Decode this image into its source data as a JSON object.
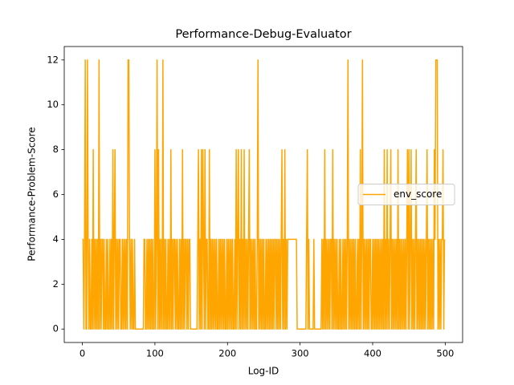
{
  "chart_data": {
    "type": "line",
    "title": "Performance-Debug-Evaluator",
    "xlabel": "Log-ID",
    "ylabel": "Performance-Problem-Score",
    "xlim": [
      -24.95,
      523.95
    ],
    "ylim": [
      -0.6,
      12.6
    ],
    "xticks": [
      0,
      100,
      200,
      300,
      400,
      500
    ],
    "yticks": [
      0,
      2,
      4,
      6,
      8,
      10,
      12
    ],
    "legend": "center right",
    "grid": false,
    "x": [
      0,
      1,
      2,
      3,
      4,
      5,
      6,
      7,
      8,
      9,
      10,
      11,
      12,
      13,
      14,
      15,
      16,
      17,
      18,
      19,
      20,
      21,
      22,
      23,
      24,
      25,
      26,
      27,
      28,
      29,
      30,
      31,
      32,
      33,
      34,
      35,
      36,
      37,
      38,
      39,
      40,
      41,
      42,
      43,
      44,
      45,
      46,
      47,
      48,
      49,
      50,
      51,
      52,
      53,
      54,
      55,
      56,
      57,
      58,
      59,
      60,
      61,
      62,
      63,
      64,
      65,
      66,
      67,
      68,
      69,
      70,
      71,
      72,
      73,
      74,
      75,
      76,
      77,
      78,
      79,
      80,
      81,
      82,
      83,
      84,
      85,
      86,
      87,
      88,
      89,
      90,
      91,
      92,
      93,
      94,
      95,
      96,
      97,
      98,
      99,
      100,
      101,
      102,
      103,
      104,
      105,
      106,
      107,
      108,
      109,
      110,
      111,
      112,
      113,
      114,
      115,
      116,
      117,
      118,
      119,
      120,
      121,
      122,
      123,
      124,
      125,
      126,
      127,
      128,
      129,
      130,
      131,
      132,
      133,
      134,
      135,
      136,
      137,
      138,
      139,
      140,
      141,
      142,
      143,
      144,
      145,
      146,
      147,
      148,
      149,
      150,
      151,
      152,
      153,
      154,
      155,
      156,
      157,
      158,
      159,
      160,
      161,
      162,
      163,
      164,
      165,
      166,
      167,
      168,
      169,
      170,
      171,
      172,
      173,
      174,
      175,
      176,
      177,
      178,
      179,
      180,
      181,
      182,
      183,
      184,
      185,
      186,
      187,
      188,
      189,
      190,
      191,
      192,
      193,
      194,
      195,
      196,
      197,
      198,
      199,
      200,
      201,
      202,
      203,
      204,
      205,
      206,
      207,
      208,
      209,
      210,
      211,
      212,
      213,
      214,
      215,
      216,
      217,
      218,
      219,
      220,
      221,
      222,
      223,
      224,
      225,
      226,
      227,
      228,
      229,
      230,
      231,
      232,
      233,
      234,
      235,
      236,
      237,
      238,
      239,
      240,
      241,
      242,
      243,
      244,
      245,
      246,
      247,
      248,
      249,
      250,
      251,
      252,
      253,
      254,
      255,
      256,
      257,
      258,
      259,
      260,
      261,
      262,
      263,
      264,
      265,
      266,
      267,
      268,
      269,
      270,
      271,
      272,
      273,
      274,
      275,
      276,
      277,
      278,
      279,
      280,
      281,
      282,
      283,
      284,
      285,
      286,
      287,
      288,
      289,
      290,
      291,
      292,
      293,
      294,
      295,
      296,
      297,
      298,
      299,
      300,
      301,
      302,
      303,
      304,
      305,
      306,
      307,
      308,
      309,
      310,
      311,
      312,
      313,
      314,
      315,
      316,
      317,
      318,
      319,
      320,
      321,
      322,
      323,
      324,
      325,
      326,
      327,
      328,
      329,
      330,
      331,
      332,
      333,
      334,
      335,
      336,
      337,
      338,
      339,
      340,
      341,
      342,
      343,
      344,
      345,
      346,
      347,
      348,
      349,
      350,
      351,
      352,
      353,
      354,
      355,
      356,
      357,
      358,
      359,
      360,
      361,
      362,
      363,
      364,
      365,
      366,
      367,
      368,
      369,
      370,
      371,
      372,
      373,
      374,
      375,
      376,
      377,
      378,
      379,
      380,
      381,
      382,
      383,
      384,
      385,
      386,
      387,
      388,
      389,
      390,
      391,
      392,
      393,
      394,
      395,
      396,
      397,
      398,
      399,
      400,
      401,
      402,
      403,
      404,
      405,
      406,
      407,
      408,
      409,
      410,
      411,
      412,
      413,
      414,
      415,
      416,
      417,
      418,
      419,
      420,
      421,
      422,
      423,
      424,
      425,
      426,
      427,
      428,
      429,
      430,
      431,
      432,
      433,
      434,
      435,
      436,
      437,
      438,
      439,
      440,
      441,
      442,
      443,
      444,
      445,
      446,
      447,
      448,
      449,
      450,
      451,
      452,
      453,
      454,
      455,
      456,
      457,
      458,
      459,
      460,
      461,
      462,
      463,
      464,
      465,
      466,
      467,
      468,
      469,
      470,
      471,
      472,
      473,
      474,
      475,
      476,
      477,
      478,
      479,
      480,
      481,
      482,
      483,
      484,
      485,
      486,
      487,
      488,
      489,
      490,
      491,
      492,
      493,
      494,
      495,
      496,
      497,
      498,
      499
    ],
    "series": [
      {
        "name": "env_score",
        "color": "#ffa500",
        "values": [
          4,
          4,
          0,
          4,
          12,
          0,
          0,
          12,
          4,
          0,
          4,
          0,
          0,
          4,
          0,
          8,
          0,
          4,
          0,
          4,
          0,
          4,
          0,
          12,
          0,
          4,
          0,
          4,
          4,
          0,
          4,
          0,
          0,
          4,
          0,
          4,
          0,
          0,
          4,
          0,
          4,
          0,
          8,
          0,
          4,
          8,
          0,
          4,
          0,
          4,
          0,
          4,
          4,
          0,
          0,
          4,
          0,
          4,
          0,
          4,
          0,
          4,
          0,
          12,
          12,
          4,
          0,
          4,
          0,
          4,
          0,
          0,
          4,
          0,
          0,
          0,
          0,
          0,
          0,
          0,
          0,
          0,
          0,
          0,
          0,
          4,
          4,
          0,
          0,
          4,
          0,
          4,
          0,
          4,
          0,
          4,
          0,
          4,
          0,
          0,
          8,
          0,
          4,
          12,
          0,
          8,
          0,
          4,
          0,
          4,
          0,
          12,
          0,
          4,
          0,
          4,
          0,
          0,
          4,
          0,
          4,
          0,
          8,
          0,
          4,
          0,
          4,
          4,
          0,
          4,
          0,
          4,
          0,
          0,
          4,
          0,
          4,
          0,
          8,
          0,
          4,
          0,
          4,
          4,
          0,
          4,
          0,
          4,
          4,
          0,
          0,
          0,
          0,
          0,
          0,
          0,
          0,
          0,
          0,
          4,
          8,
          0,
          4,
          0,
          8,
          0,
          8,
          4,
          0,
          8,
          0,
          4,
          4,
          0,
          0,
          8,
          0,
          4,
          0,
          4,
          0,
          4,
          0,
          4,
          0,
          4,
          0,
          0,
          4,
          0,
          4,
          0,
          4,
          0,
          4,
          0,
          4,
          0,
          0,
          4,
          0,
          4,
          0,
          4,
          0,
          4,
          0,
          4,
          0,
          0,
          4,
          0,
          8,
          0,
          4,
          8,
          0,
          4,
          0,
          8,
          0,
          4,
          0,
          8,
          0,
          4,
          0,
          4,
          0,
          4,
          8,
          0,
          4,
          0,
          4,
          0,
          4,
          0,
          4,
          0,
          0,
          4,
          12,
          0,
          4,
          0,
          4,
          0,
          4,
          0,
          4,
          0,
          0,
          4,
          0,
          4,
          0,
          4,
          0,
          4,
          0,
          4,
          0,
          4,
          0,
          4,
          4,
          0,
          4,
          0,
          4,
          0,
          4,
          0,
          4,
          8,
          0,
          4,
          0,
          8,
          0,
          4,
          0,
          4,
          4,
          4,
          4,
          4,
          4,
          4,
          4,
          4,
          4,
          4,
          4,
          4,
          0,
          0,
          0,
          0,
          0,
          0,
          0,
          0,
          0,
          0,
          0,
          0,
          0,
          4,
          8,
          0,
          4,
          0,
          0,
          0,
          0,
          0,
          0,
          4,
          0,
          0,
          0,
          0,
          0,
          0,
          0,
          0,
          0,
          0,
          4,
          0,
          4,
          0,
          8,
          0,
          4,
          0,
          4,
          0,
          4,
          0,
          4,
          4,
          0,
          8,
          0,
          4,
          0,
          4,
          0,
          4,
          0,
          0,
          4,
          0,
          4,
          0,
          0,
          4,
          0,
          4,
          0,
          4,
          0,
          4,
          12,
          0,
          4,
          0,
          4,
          0,
          4,
          0,
          4,
          0,
          4,
          0,
          0,
          4,
          0,
          4,
          0,
          8,
          0,
          4,
          12,
          0,
          4,
          0,
          4,
          0,
          4,
          0,
          4,
          0,
          4,
          4,
          0,
          0,
          4,
          0,
          4,
          0,
          4,
          0,
          4,
          0,
          4,
          0,
          4,
          0,
          4,
          0,
          4,
          0,
          8,
          0,
          4,
          0,
          8,
          0,
          4,
          0,
          4,
          8,
          0,
          4,
          0,
          4,
          0,
          4,
          0,
          4,
          0,
          8,
          0,
          4,
          0,
          4,
          0,
          4,
          0,
          4,
          0,
          4,
          0,
          4,
          8,
          0,
          8,
          0,
          4,
          8,
          0,
          4,
          0,
          4,
          0,
          4,
          8,
          0,
          4,
          0,
          4,
          0,
          4,
          0,
          4,
          0,
          4,
          0,
          4,
          0,
          4,
          8,
          0,
          4,
          0,
          4,
          0,
          4,
          0,
          4,
          0,
          8,
          4,
          12,
          12,
          12,
          0,
          4,
          0,
          4,
          0,
          4,
          4,
          8,
          0,
          4
        ]
      }
    ]
  }
}
